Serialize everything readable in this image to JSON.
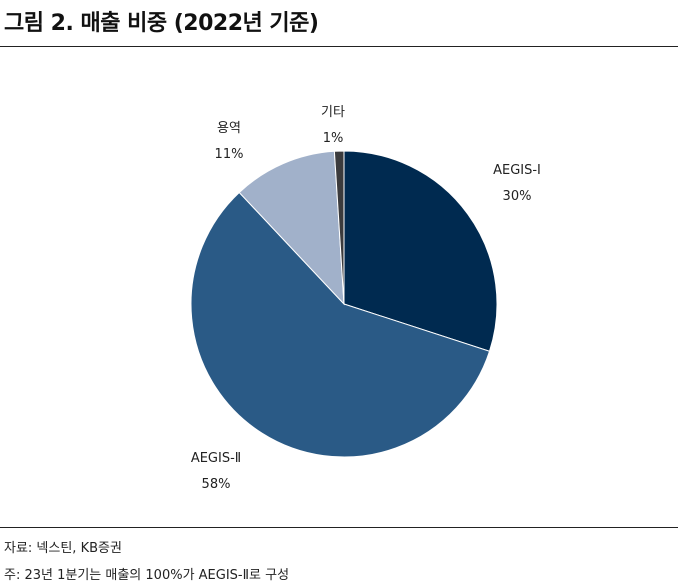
{
  "figure": {
    "title": "그림 2. 매출 비중 (2022년 기준)",
    "source": "자료: 넥스틴, KB증권",
    "footnote": "주: 23년 1분기는 매출의 100%가 AEGIS-Ⅱ로 구성"
  },
  "chart_data": {
    "type": "pie",
    "title": "",
    "start": "12 o'clock",
    "direction": "clockwise",
    "slices": [
      {
        "label": "AEGIS-Ⅰ",
        "value": 30,
        "value_label": "30%",
        "color": "#002a50"
      },
      {
        "label": "AEGIS-Ⅱ",
        "value": 58,
        "value_label": "58%",
        "color": "#2a5a86"
      },
      {
        "label": "용역",
        "value": 11,
        "value_label": "11%",
        "color": "#a1b1ca"
      },
      {
        "label": "기타",
        "value": 1,
        "value_label": "1%",
        "color": "#3b3b3d"
      }
    ],
    "legend": "none"
  }
}
